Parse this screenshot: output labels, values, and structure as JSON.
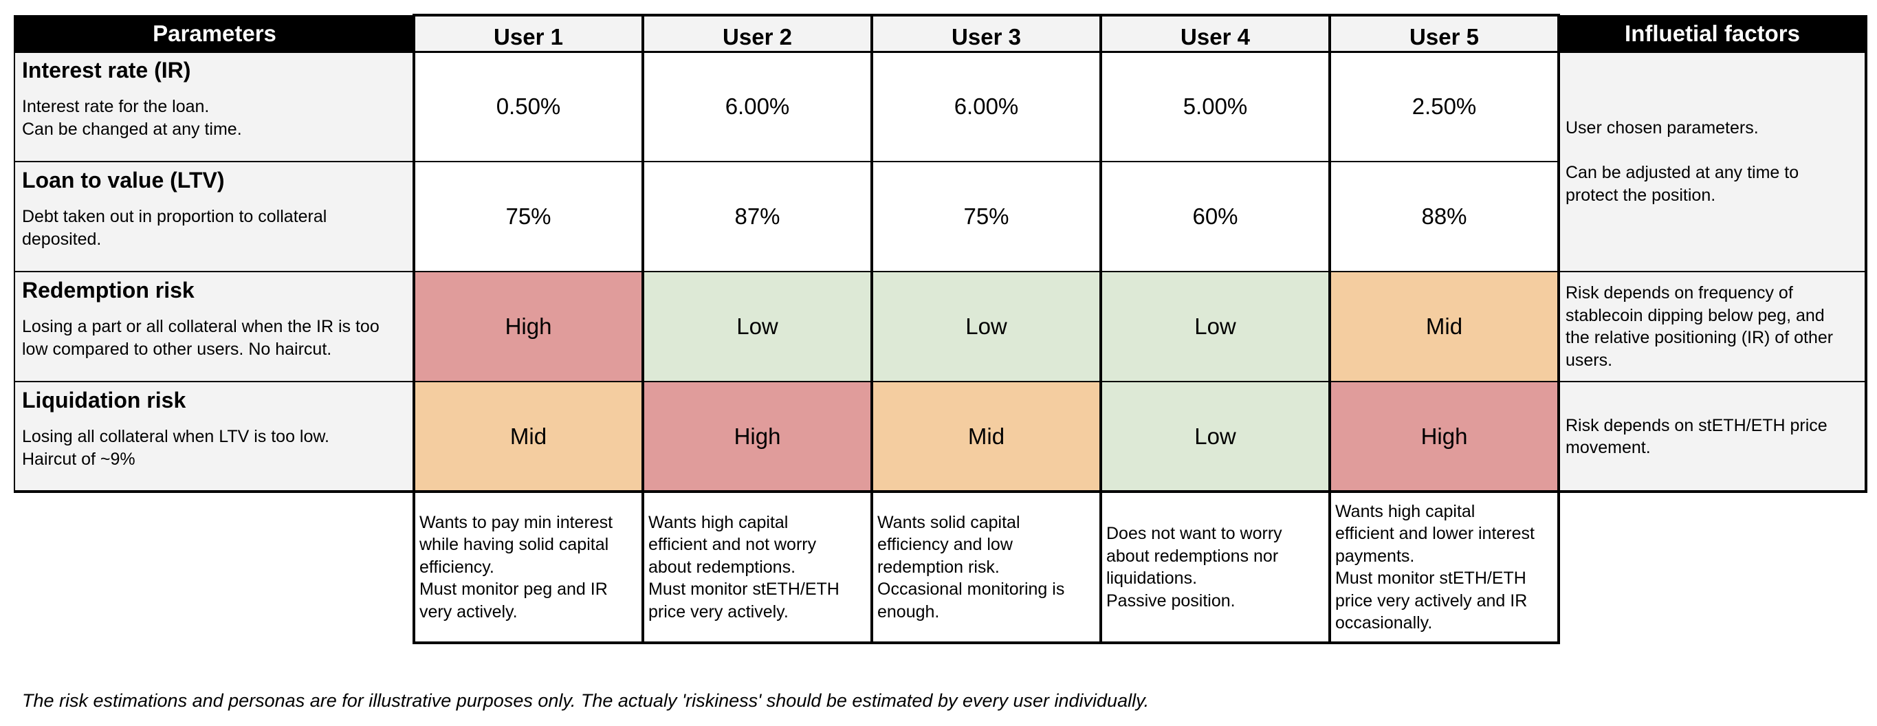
{
  "header": {
    "parameters": "Parameters",
    "users": [
      "User 1",
      "User 2",
      "User 3",
      "User 4",
      "User 5"
    ],
    "factors": "Influetial factors"
  },
  "rows": [
    {
      "title": "Interest rate (IR)",
      "desc": "Interest rate for the loan.\nCan be changed at any time.",
      "values": [
        "0.50%",
        "6.00%",
        "6.00%",
        "5.00%",
        "2.50%"
      ]
    },
    {
      "title": "Loan to value (LTV)",
      "desc": "Debt taken out in proportion to collateral\ndeposited.",
      "values": [
        "75%",
        "87%",
        "75%",
        "60%",
        "88%"
      ]
    },
    {
      "title": "Redemption risk",
      "desc": "Losing a part or all collateral when the IR is too\nlow compared to other users. No haircut.",
      "values": [
        "High",
        "Low",
        "Low",
        "Low",
        "Mid"
      ]
    },
    {
      "title": "Liquidation risk",
      "desc": "Losing all collateral when LTV is too low.\nHaircut of ~9%",
      "values": [
        "Mid",
        "High",
        "Mid",
        "Low",
        "High"
      ]
    }
  ],
  "factors": {
    "user_params": "User chosen parameters.\n\nCan be adjusted at any time to\nprotect the position.",
    "redemption": "Risk depends on frequency of\nstablecoin dipping below peg, and\nthe relative positioning (IR) of other\nusers.",
    "liquidation": "Risk depends on stETH/ETH price\nmovement."
  },
  "personas": [
    "Wants to pay min interest\nwhile having solid capital\nefficiency.\nMust monitor peg and IR\nvery actively.",
    "Wants high capital\nefficient and not worry\nabout redemptions.\nMust monitor stETH/ETH\nprice very actively.",
    "Wants solid capital\nefficiency and low\nredemption risk.\nOccasional monitoring is\nenough.",
    "Does not want to worry\nabout redemptions nor\nliquidations.\nPassive position.",
    "Wants high capital\nefficient and lower interest\npayments.\nMust monitor stETH/ETH\nprice very actively and IR\noccasionally."
  ],
  "footnote": "The risk estimations and personas are for illustrative purposes only.  The actualy 'riskiness' should be estimated by every user individually.",
  "colors": {
    "high": "#e09c9b",
    "mid": "#f4cda0",
    "low": "#dde9d6",
    "header_black": "#000000",
    "header_grey": "#f3f3f3"
  }
}
